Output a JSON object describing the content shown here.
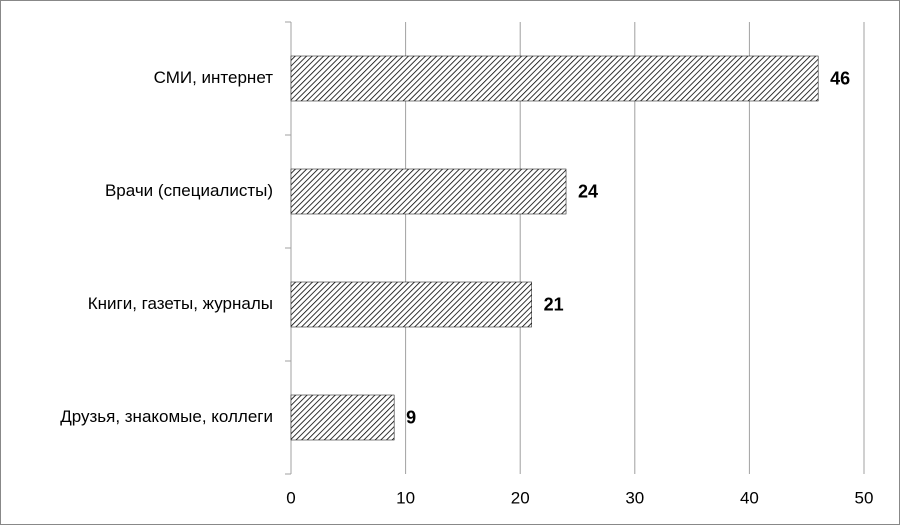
{
  "chart_data": {
    "type": "bar",
    "orientation": "horizontal",
    "categories": [
      "СМИ, интернет",
      "Врачи (специалисты)",
      "Книги, газеты, журналы",
      "Друзья, знакомые, коллеги"
    ],
    "values": [
      46,
      24,
      21,
      9
    ],
    "color": "#000000",
    "xlim": [
      0,
      50
    ],
    "xticks": [
      0,
      10,
      20,
      30,
      40,
      50
    ],
    "grid": true
  }
}
